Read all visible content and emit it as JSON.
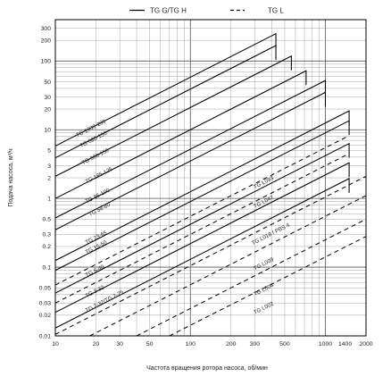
{
  "chart_data": {
    "type": "line",
    "xscale": "log",
    "yscale": "log",
    "xlim": [
      10,
      2000
    ],
    "ylim": [
      0.01,
      400
    ],
    "xlabel": "Частота вращения ротора насоса, об/мин",
    "ylabel": "Подача насоса, м³/ч",
    "x_ticks": [
      10,
      20,
      30,
      50,
      100,
      200,
      300,
      500,
      1000,
      1400,
      2000
    ],
    "x_tick_labels": [
      "10",
      "20",
      "30",
      "50",
      "100",
      "200",
      "300",
      "500",
      "1000",
      "1400",
      "2000"
    ],
    "y_ticks": [
      0.01,
      0.02,
      0.03,
      0.05,
      0.1,
      0.2,
      0.3,
      0.5,
      1,
      2,
      3,
      5,
      10,
      20,
      30,
      50,
      100,
      200,
      300
    ],
    "y_tick_labels": [
      "0.01",
      "0.02",
      "0.03",
      "0.05",
      "0.1",
      "0.2",
      "0.3",
      "0.5",
      "1",
      "2",
      "3",
      "5",
      "10",
      "20",
      "30",
      "50",
      "100",
      "200",
      "300"
    ],
    "grid": true,
    "legend": {
      "position": "top",
      "entries": [
        {
          "label": "TG G/TG H",
          "style": "solid"
        },
        {
          "label": "TG L",
          "style": "dashed"
        }
      ]
    },
    "series": [
      {
        "name": "TG 1030-200",
        "group": "TG G/TG H",
        "x": [
          10,
          430
        ],
        "y": [
          5.8,
          250
        ]
      },
      {
        "name": "TG 680-150",
        "group": "TG G/TG H",
        "x": [
          10,
          430
        ],
        "y": [
          3.9,
          168
        ]
      },
      {
        "name": "TG 360-150",
        "group": "TG G/TG H",
        "x": [
          10,
          560
        ],
        "y": [
          2.1,
          118
        ]
      },
      {
        "name": "TG 185-125",
        "group": "TG G/TG H",
        "x": [
          10,
          720
        ],
        "y": [
          1.0,
          72
        ]
      },
      {
        "name": "TG 86-100",
        "group": "TG G/TG H",
        "x": [
          10,
          1000
        ],
        "y": [
          0.52,
          52
        ]
      },
      {
        "name": "TG 58-80",
        "group": "TG G/TG H",
        "x": [
          10,
          1000
        ],
        "y": [
          0.35,
          35
        ]
      },
      {
        "name": "TG 23-65",
        "group": "TG G/TG H",
        "x": [
          10,
          1500
        ],
        "y": [
          0.125,
          18.8
        ]
      },
      {
        "name": "TG 15-50",
        "group": "TG G/TG H",
        "x": [
          10,
          1500
        ],
        "y": [
          0.09,
          13.5
        ]
      },
      {
        "name": "TG 6-40",
        "group": "TG G/TG H",
        "x": [
          10,
          1500
        ],
        "y": [
          0.042,
          6.3
        ]
      },
      {
        "name": "TG 3-32",
        "group": "TG G/TG H",
        "x": [
          10,
          1500
        ],
        "y": [
          0.022,
          3.3
        ]
      },
      {
        "name": "TG 2-32/TG 2-25",
        "group": "TG G/TG H",
        "x": [
          10,
          1500
        ],
        "y": [
          0.013,
          1.95
        ]
      },
      {
        "name": "TG L093",
        "group": "TG L",
        "x": [
          10,
          1500
        ],
        "y": [
          0.055,
          8.2
        ]
      },
      {
        "name": "TG L047",
        "group": "TG L",
        "x": [
          10,
          1500
        ],
        "y": [
          0.03,
          4.5
        ]
      },
      {
        "name": "TG L018 / PBS 4",
        "group": "TG L",
        "x": [
          10,
          2000
        ],
        "y": [
          0.0105,
          2.1
        ]
      },
      {
        "name": "TG L009",
        "group": "TG L",
        "x": [
          18,
          2000
        ],
        "y": [
          0.01,
          1.1
        ]
      },
      {
        "name": "TG L004",
        "group": "TG L",
        "x": [
          40,
          2000
        ],
        "y": [
          0.01,
          0.5
        ]
      },
      {
        "name": "TG L002",
        "group": "TG L",
        "x": [
          70,
          2000
        ],
        "y": [
          0.01,
          0.28
        ]
      }
    ],
    "annotations": [
      {
        "text": "TG 1030-200",
        "x": 14.5,
        "y": 7.8
      },
      {
        "text": "TG 680-150",
        "x": 15.5,
        "y": 5.5
      },
      {
        "text": "TG 360-150",
        "x": 16,
        "y": 3.1
      },
      {
        "text": "TG 185-125",
        "x": 17,
        "y": 1.65
      },
      {
        "text": "TG 86-100",
        "x": 17,
        "y": 0.85
      },
      {
        "text": "TG 58-80",
        "x": 18,
        "y": 0.55
      },
      {
        "text": "TG 23-65",
        "x": 17,
        "y": 0.215
      },
      {
        "text": "TG 15-50",
        "x": 17,
        "y": 0.155
      },
      {
        "text": "TG 6-40",
        "x": 17,
        "y": 0.072
      },
      {
        "text": "TG 3-32",
        "x": 17,
        "y": 0.036
      },
      {
        "text": "TG 2-32/TG 2-25",
        "x": 17,
        "y": 0.022
      },
      {
        "text": "TG L093",
        "x": 300,
        "y": 1.38
      },
      {
        "text": "TG L047",
        "x": 300,
        "y": 0.72
      },
      {
        "text": "TG L018 / PBS 4",
        "x": 290,
        "y": 0.21
      },
      {
        "text": "TG L009",
        "x": 300,
        "y": 0.09
      },
      {
        "text": "TG L004",
        "x": 300,
        "y": 0.038
      },
      {
        "text": "TG L002",
        "x": 300,
        "y": 0.0205
      }
    ]
  }
}
